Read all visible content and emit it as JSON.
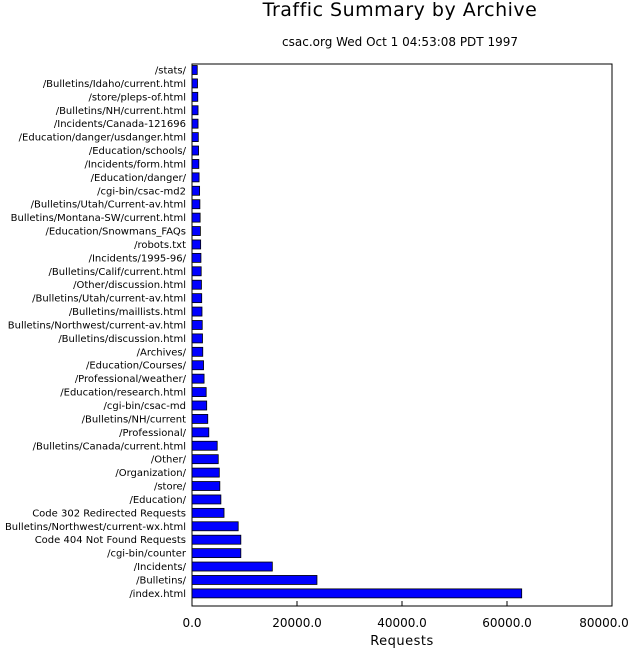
{
  "chart_data": {
    "type": "bar",
    "orientation": "horizontal",
    "title": "Traffic Summary by Archive",
    "subtitle": "csac.org Wed Oct  1 04:53:08 PDT 1997",
    "xlabel": "Requests",
    "ylabel": "",
    "xlim": [
      0,
      80000
    ],
    "xticks": [
      "0.0",
      "20000.0",
      "40000.0",
      "60000.0",
      "80000.0"
    ],
    "grid": false,
    "bar_color": "#0000ff",
    "categories": [
      "/stats/",
      "/Bulletins/Idaho/current.html",
      "/store/pleps-of.html",
      "/Bulletins/NH/current.html",
      "/Incidents/Canada-121696",
      "/Education/danger/usdanger.html",
      "/Education/schools/",
      "/Incidents/form.html",
      "/Education/danger/",
      "/cgi-bin/csac-md2",
      "/Bulletins/Utah/Current-av.html",
      "Bulletins/Montana-SW/current.html",
      "/Education/Snowmans_FAQs",
      "/robots.txt",
      "/Incidents/1995-96/",
      "/Bulletins/Calif/current.html",
      "/Other/discussion.html",
      "/Bulletins/Utah/current-av.html",
      "/Bulletins/maillists.html",
      "Bulletins/Northwest/current-av.html",
      "/Bulletins/discussion.html",
      "/Archives/",
      "/Education/Courses/",
      "/Professional/weather/",
      "/Education/research.html",
      "/cgi-bin/csac-md",
      "/Bulletins/NH/current",
      "/Professional/",
      "/Bulletins/Canada/current.html",
      "/Other/",
      "/Organization/",
      "/store/",
      "/Education/",
      "Code 302 Redirected Requests",
      "Bulletins/Northwest/current-wx.html",
      "Code 404 Not Found Requests",
      "/cgi-bin/counter",
      "/Incidents/",
      "/Bulletins/",
      "/index.html"
    ],
    "values": [
      1000,
      1050,
      1100,
      1150,
      1150,
      1200,
      1250,
      1300,
      1350,
      1450,
      1500,
      1550,
      1600,
      1650,
      1700,
      1750,
      1800,
      1850,
      1900,
      1950,
      2000,
      2050,
      2200,
      2300,
      2700,
      2800,
      3000,
      3200,
      4800,
      5000,
      5200,
      5300,
      5500,
      6100,
      8800,
      9300,
      9300,
      15300,
      23800,
      62800
    ]
  }
}
